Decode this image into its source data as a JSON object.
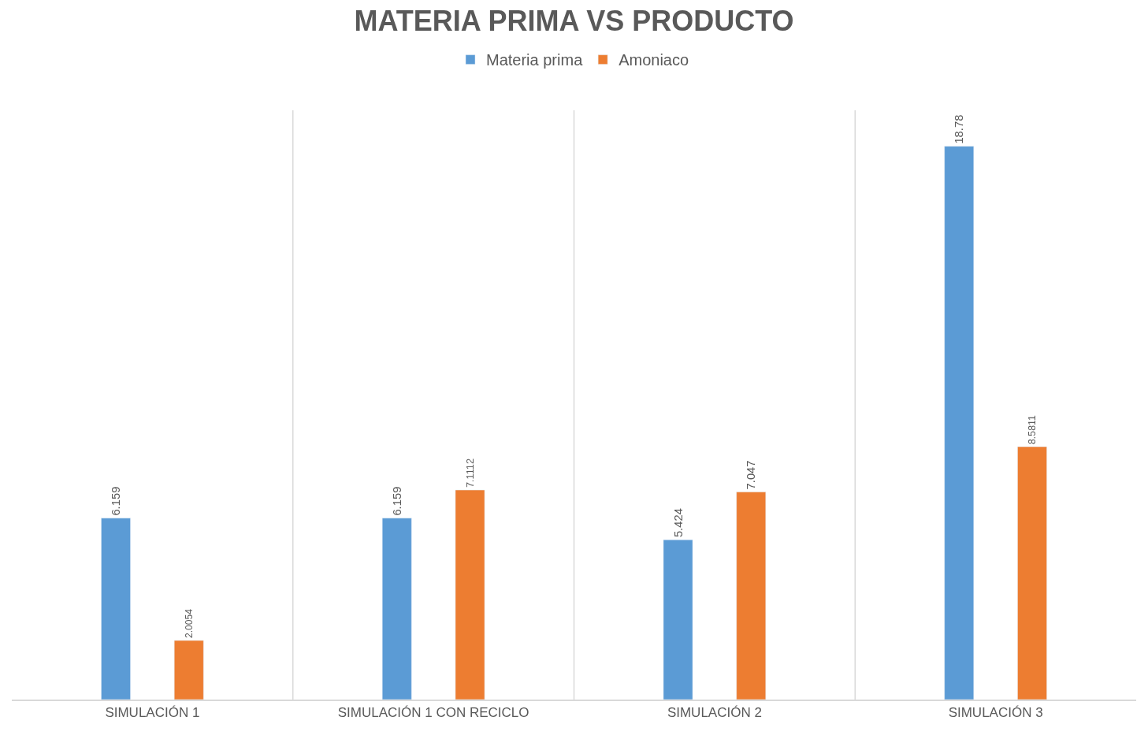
{
  "chart_data": {
    "type": "bar",
    "title": "MATERIA PRIMA VS PRODUCTO",
    "categories": [
      "SIMULACIÓN 1",
      "SIMULACIÓN 1 CON RECICLO",
      "SIMULACIÓN 2",
      "SIMULACIÓN 3"
    ],
    "series": [
      {
        "name": "Materia prima",
        "color": "#5b9bd5",
        "values": [
          6.159,
          6.159,
          5.424,
          18.78
        ]
      },
      {
        "name": "Amoniaco",
        "color": "#ed7d31",
        "values": [
          2.0054,
          7.1112,
          7.047,
          8.5811
        ]
      }
    ],
    "ylim": [
      0,
      20
    ],
    "tick_labels": "x",
    "grid": "x",
    "legend": "top",
    "data_labels": true
  }
}
